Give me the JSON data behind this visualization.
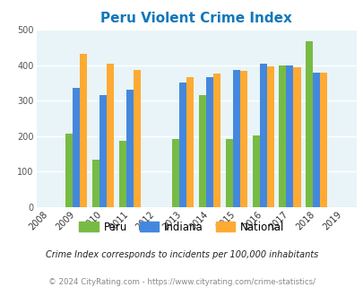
{
  "title": "Peru Violent Crime Index",
  "years": [
    2009,
    2010,
    2011,
    2013,
    2014,
    2015,
    2016,
    2017,
    2018
  ],
  "peru": [
    208,
    135,
    187,
    191,
    315,
    192,
    202,
    399,
    466
  ],
  "indiana": [
    335,
    315,
    331,
    350,
    366,
    386,
    405,
    400,
    380
  ],
  "national": [
    432,
    405,
    387,
    367,
    377,
    383,
    397,
    394,
    379
  ],
  "peru_color": "#77bb44",
  "indiana_color": "#4488dd",
  "national_color": "#ffaa33",
  "bg_color": "#e8f4f8",
  "title_color": "#1177bb",
  "ylim": [
    0,
    500
  ],
  "yticks": [
    0,
    100,
    200,
    300,
    400,
    500
  ],
  "xtick_years": [
    2008,
    2009,
    2010,
    2011,
    2012,
    2013,
    2014,
    2015,
    2016,
    2017,
    2018,
    2019
  ],
  "footnote1": "Crime Index corresponds to incidents per 100,000 inhabitants",
  "footnote2": "© 2024 CityRating.com - https://www.cityrating.com/crime-statistics/",
  "bar_width": 0.27
}
